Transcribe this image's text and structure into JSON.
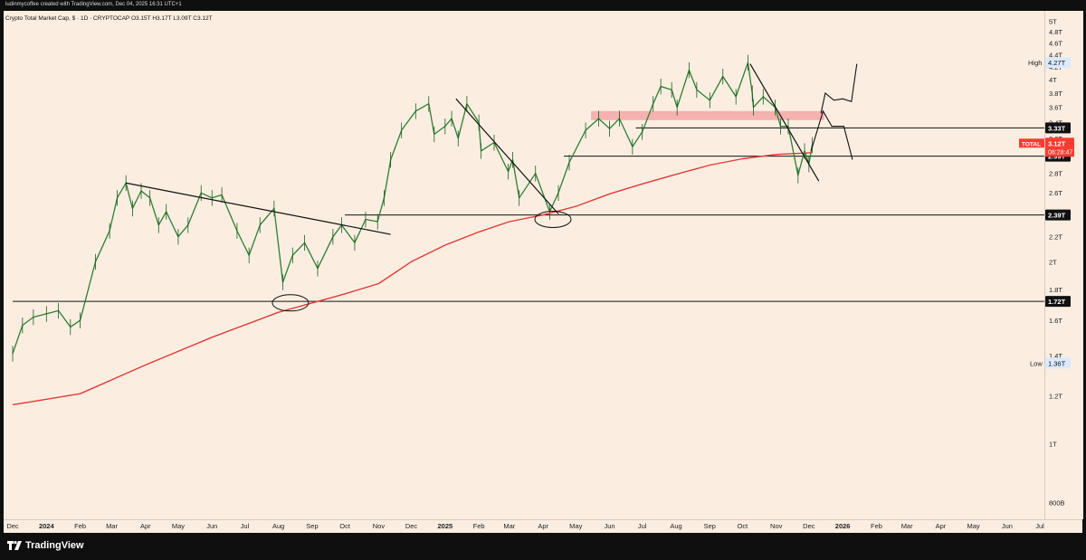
{
  "header": {
    "credit": "ludinmycoffee created with TradingView.com, Dec 04, 2025 16:31 UTC+1",
    "symbol_line": "Crypto Total Market Cap, $ · 1D · CRYPTOCAP  O3.15T  H3.17T  L3.09T  C3.12T"
  },
  "footer": {
    "brand": "TradingView"
  },
  "chart_data": {
    "type": "line",
    "y_scale": "log",
    "ylim": [
      0.75,
      5.2
    ],
    "y_unit": "T",
    "y_ticks": [
      {
        "v": 5.0,
        "label": "5T"
      },
      {
        "v": 4.8,
        "label": "4.8T"
      },
      {
        "v": 4.6,
        "label": "4.6T"
      },
      {
        "v": 4.4,
        "label": "4.4T"
      },
      {
        "v": 4.2,
        "label": "4.2T"
      },
      {
        "v": 4.0,
        "label": "4T"
      },
      {
        "v": 3.8,
        "label": "3.8T"
      },
      {
        "v": 3.6,
        "label": "3.6T"
      },
      {
        "v": 3.4,
        "label": "3.4T"
      },
      {
        "v": 3.2,
        "label": "3.2T"
      },
      {
        "v": 2.8,
        "label": "2.8T"
      },
      {
        "v": 2.6,
        "label": "2.6T"
      },
      {
        "v": 2.2,
        "label": "2.2T"
      },
      {
        "v": 2.0,
        "label": "2T"
      },
      {
        "v": 1.8,
        "label": "1.8T"
      },
      {
        "v": 1.6,
        "label": "1.6T"
      },
      {
        "v": 1.4,
        "label": "1.4T"
      },
      {
        "v": 1.2,
        "label": "1.2T"
      },
      {
        "v": 1.0,
        "label": "1T"
      },
      {
        "v": 0.8,
        "label": "800B"
      }
    ],
    "x_ticks": [
      {
        "x": "2023-12",
        "label": "Dec"
      },
      {
        "x": "2024-01",
        "label": "2024"
      },
      {
        "x": "2024-02",
        "label": "Feb"
      },
      {
        "x": "2024-03",
        "label": "Mar"
      },
      {
        "x": "2024-04",
        "label": "Apr"
      },
      {
        "x": "2024-05",
        "label": "May"
      },
      {
        "x": "2024-06",
        "label": "Jun"
      },
      {
        "x": "2024-07",
        "label": "Jul"
      },
      {
        "x": "2024-08",
        "label": "Aug"
      },
      {
        "x": "2024-09",
        "label": "Sep"
      },
      {
        "x": "2024-10",
        "label": "Oct"
      },
      {
        "x": "2024-11",
        "label": "Nov"
      },
      {
        "x": "2024-12",
        "label": "Dec"
      },
      {
        "x": "2025-01",
        "label": "2025"
      },
      {
        "x": "2025-02",
        "label": "Feb"
      },
      {
        "x": "2025-03",
        "label": "Mar"
      },
      {
        "x": "2025-04",
        "label": "Apr"
      },
      {
        "x": "2025-05",
        "label": "May"
      },
      {
        "x": "2025-06",
        "label": "Jun"
      },
      {
        "x": "2025-07",
        "label": "Jul"
      },
      {
        "x": "2025-08",
        "label": "Aug"
      },
      {
        "x": "2025-09",
        "label": "Sep"
      },
      {
        "x": "2025-10",
        "label": "Oct"
      },
      {
        "x": "2025-11",
        "label": "Nov"
      },
      {
        "x": "2025-12",
        "label": "Dec"
      },
      {
        "x": "2026-01",
        "label": "2026"
      },
      {
        "x": "2026-02",
        "label": "Feb"
      },
      {
        "x": "2026-03",
        "label": "Mar"
      },
      {
        "x": "2026-04",
        "label": "Apr"
      },
      {
        "x": "2026-05",
        "label": "May"
      },
      {
        "x": "2026-06",
        "label": "Jun"
      },
      {
        "x": "2026-07",
        "label": "Jul"
      }
    ],
    "series": [
      {
        "name": "TOTAL",
        "color": "#2e7d32",
        "points": [
          [
            "2023-12-01",
            1.41
          ],
          [
            "2023-12-10",
            1.57
          ],
          [
            "2023-12-20",
            1.62
          ],
          [
            "2024-01-01",
            1.64
          ],
          [
            "2024-01-12",
            1.66
          ],
          [
            "2024-01-23",
            1.56
          ],
          [
            "2024-02-01",
            1.6
          ],
          [
            "2024-02-15",
            2.0
          ],
          [
            "2024-02-28",
            2.25
          ],
          [
            "2024-03-06",
            2.55
          ],
          [
            "2024-03-14",
            2.7
          ],
          [
            "2024-03-20",
            2.45
          ],
          [
            "2024-03-28",
            2.62
          ],
          [
            "2024-04-05",
            2.55
          ],
          [
            "2024-04-13",
            2.3
          ],
          [
            "2024-04-20",
            2.42
          ],
          [
            "2024-05-01",
            2.2
          ],
          [
            "2024-05-10",
            2.3
          ],
          [
            "2024-05-22",
            2.6
          ],
          [
            "2024-06-01",
            2.55
          ],
          [
            "2024-06-10",
            2.58
          ],
          [
            "2024-06-24",
            2.25
          ],
          [
            "2024-07-05",
            2.05
          ],
          [
            "2024-07-15",
            2.3
          ],
          [
            "2024-07-28",
            2.45
          ],
          [
            "2024-08-05",
            1.85
          ],
          [
            "2024-08-14",
            2.05
          ],
          [
            "2024-08-25",
            2.15
          ],
          [
            "2024-09-06",
            1.95
          ],
          [
            "2024-09-20",
            2.2
          ],
          [
            "2024-09-28",
            2.3
          ],
          [
            "2024-10-10",
            2.15
          ],
          [
            "2024-10-20",
            2.35
          ],
          [
            "2024-10-31",
            2.33
          ],
          [
            "2024-11-06",
            2.55
          ],
          [
            "2024-11-12",
            2.95
          ],
          [
            "2024-11-22",
            3.3
          ],
          [
            "2024-12-05",
            3.55
          ],
          [
            "2024-12-17",
            3.65
          ],
          [
            "2024-12-22",
            3.25
          ],
          [
            "2025-01-01",
            3.35
          ],
          [
            "2025-01-07",
            3.45
          ],
          [
            "2025-01-13",
            3.2
          ],
          [
            "2025-01-21",
            3.65
          ],
          [
            "2025-02-01",
            3.4
          ],
          [
            "2025-02-03",
            3.05
          ],
          [
            "2025-02-15",
            3.15
          ],
          [
            "2025-02-28",
            2.82
          ],
          [
            "2025-03-04",
            2.95
          ],
          [
            "2025-03-10",
            2.55
          ],
          [
            "2025-03-25",
            2.8
          ],
          [
            "2025-04-07",
            2.42
          ],
          [
            "2025-04-15",
            2.6
          ],
          [
            "2025-04-25",
            2.92
          ],
          [
            "2025-05-10",
            3.3
          ],
          [
            "2025-05-22",
            3.45
          ],
          [
            "2025-06-01",
            3.32
          ],
          [
            "2025-06-10",
            3.45
          ],
          [
            "2025-06-22",
            3.1
          ],
          [
            "2025-07-01",
            3.28
          ],
          [
            "2025-07-11",
            3.65
          ],
          [
            "2025-07-18",
            3.9
          ],
          [
            "2025-07-28",
            3.85
          ],
          [
            "2025-08-02",
            3.6
          ],
          [
            "2025-08-13",
            4.15
          ],
          [
            "2025-08-20",
            3.85
          ],
          [
            "2025-09-01",
            3.7
          ],
          [
            "2025-09-13",
            4.05
          ],
          [
            "2025-09-25",
            3.75
          ],
          [
            "2025-10-06",
            4.27
          ],
          [
            "2025-10-10",
            3.8
          ],
          [
            "2025-10-11",
            3.6
          ],
          [
            "2025-10-20",
            3.75
          ],
          [
            "2025-10-31",
            3.6
          ],
          [
            "2025-11-05",
            3.35
          ],
          [
            "2025-11-12",
            3.35
          ],
          [
            "2025-11-21",
            2.78
          ],
          [
            "2025-11-27",
            3.05
          ],
          [
            "2025-12-01",
            2.9
          ],
          [
            "2025-12-04",
            3.12
          ]
        ]
      },
      {
        "name": "",
        "color": "#e53935",
        "points": [
          [
            "2023-12-01",
            1.16
          ],
          [
            "2024-02-01",
            1.21
          ],
          [
            "2024-04-01",
            1.35
          ],
          [
            "2024-06-01",
            1.5
          ],
          [
            "2024-08-01",
            1.65
          ],
          [
            "2024-10-01",
            1.77
          ],
          [
            "2024-11-01",
            1.84
          ],
          [
            "2024-12-01",
            2.0
          ],
          [
            "2025-01-01",
            2.13
          ],
          [
            "2025-02-01",
            2.24
          ],
          [
            "2025-03-01",
            2.33
          ],
          [
            "2025-04-01",
            2.39
          ],
          [
            "2025-05-01",
            2.47
          ],
          [
            "2025-06-01",
            2.59
          ],
          [
            "2025-07-01",
            2.69
          ],
          [
            "2025-08-01",
            2.79
          ],
          [
            "2025-09-01",
            2.89
          ],
          [
            "2025-10-01",
            2.96
          ],
          [
            "2025-11-01",
            3.01
          ],
          [
            "2025-12-04",
            3.03
          ]
        ]
      }
    ],
    "price_levels": [
      {
        "value": 3.33,
        "label": "3.33T"
      },
      {
        "value": 2.99,
        "label": "2.99T"
      },
      {
        "value": 2.39,
        "label": "2.39T"
      },
      {
        "value": 1.72,
        "label": "1.72T"
      }
    ],
    "current": {
      "name": "TOTAL",
      "value": "3.12T",
      "countdown": "08:28:47",
      "color": "#ff3b30"
    },
    "high": {
      "label": "High",
      "value": "4.27T"
    },
    "low": {
      "label": "Low",
      "value": "1.36T"
    }
  }
}
